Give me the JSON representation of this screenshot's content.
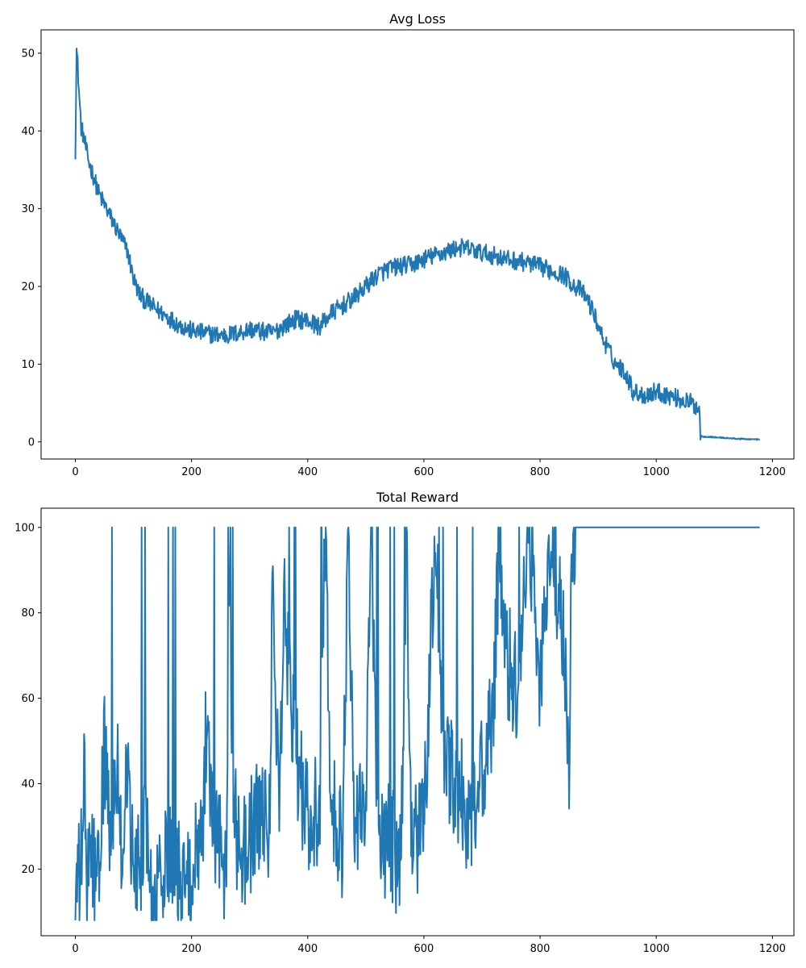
{
  "chart_data": [
    {
      "type": "line",
      "title": "Avg Loss",
      "xlabel": "",
      "ylabel": "",
      "xlim": [
        -59,
        1237
      ],
      "ylim": [
        -2.2,
        53.0
      ],
      "xticks": [
        0,
        200,
        400,
        600,
        800,
        1000,
        1200
      ],
      "yticks": [
        0,
        10,
        20,
        30,
        40,
        50
      ],
      "grid": false,
      "legend": "none",
      "color": "#1f77b4",
      "x_range": [
        0,
        1178
      ],
      "x": [
        0,
        2,
        4,
        7,
        10,
        15,
        20,
        25,
        30,
        40,
        50,
        60,
        70,
        80,
        90,
        100,
        110,
        120,
        140,
        160,
        180,
        200,
        220,
        240,
        260,
        280,
        300,
        320,
        340,
        360,
        380,
        400,
        420,
        440,
        460,
        480,
        500,
        520,
        540,
        560,
        580,
        600,
        620,
        640,
        660,
        680,
        700,
        720,
        740,
        760,
        780,
        800,
        820,
        840,
        860,
        870,
        880,
        890,
        900,
        910,
        920,
        930,
        940,
        950,
        960,
        980,
        1000,
        1020,
        1040,
        1060,
        1070,
        1074,
        1076,
        1080,
        1100,
        1120,
        1140,
        1160,
        1178
      ],
      "values": [
        37.5,
        50.5,
        48.5,
        44.0,
        40.5,
        39.0,
        37.0,
        35.5,
        34.5,
        32.0,
        30.5,
        29.0,
        27.5,
        26.0,
        24.5,
        21.0,
        19.0,
        18.2,
        17.0,
        16.0,
        15.0,
        14.3,
        14.0,
        13.8,
        13.7,
        14.0,
        14.5,
        14.2,
        14.0,
        15.0,
        15.8,
        15.6,
        14.8,
        16.5,
        17.5,
        18.5,
        20.0,
        21.5,
        22.3,
        22.6,
        22.8,
        23.5,
        24.0,
        24.5,
        25.0,
        24.8,
        24.3,
        24.0,
        23.5,
        23.3,
        23.0,
        22.5,
        22.0,
        21.5,
        20.0,
        19.5,
        18.5,
        17.0,
        15.0,
        13.0,
        11.5,
        10.0,
        9.5,
        8.5,
        6.5,
        6.0,
        6.5,
        6.0,
        5.5,
        5.0,
        4.5,
        4.5,
        0.8,
        0.7,
        0.6,
        0.5,
        0.4,
        0.35,
        0.3
      ],
      "noise": 1.2
    },
    {
      "type": "line",
      "title": "Total Reward",
      "xlabel": "",
      "ylabel": "",
      "xlim": [
        -59,
        1237
      ],
      "ylim": [
        4.4,
        104.5
      ],
      "xticks": [
        0,
        200,
        400,
        600,
        800,
        1000,
        1200
      ],
      "yticks": [
        20,
        40,
        60,
        80,
        100
      ],
      "grid": false,
      "legend": "none",
      "color": "#1f77b4",
      "x_range": [
        0,
        1178
      ],
      "x": [
        0,
        5,
        10,
        15,
        20,
        30,
        40,
        50,
        60,
        70,
        80,
        90,
        100,
        120,
        140,
        150,
        160,
        180,
        200,
        220,
        225,
        240,
        260,
        265,
        270,
        280,
        300,
        320,
        335,
        340,
        350,
        360,
        380,
        400,
        420,
        430,
        440,
        460,
        470,
        480,
        500,
        510,
        520,
        540,
        560,
        570,
        575,
        580,
        600,
        620,
        630,
        640,
        660,
        680,
        700,
        720,
        730,
        740,
        760,
        780,
        800,
        820,
        840,
        850,
        855,
        860,
        900,
        955,
        960,
        975,
        1000,
        1100,
        1178
      ],
      "values": [
        13,
        16,
        21,
        41,
        18,
        22,
        15,
        51,
        20,
        49,
        24,
        45,
        17,
        28,
        11,
        20,
        26,
        17,
        19,
        35,
        54,
        28,
        20,
        87,
        49,
        24,
        27,
        33,
        29,
        95,
        34,
        79,
        47,
        31,
        33,
        100,
        35,
        26,
        100,
        31,
        38,
        100,
        24,
        27,
        21,
        100,
        48,
        24,
        30,
        100,
        58,
        43,
        38,
        32,
        42,
        56,
        100,
        71,
        62,
        100,
        64,
        100,
        72,
        44,
        100,
        100,
        100,
        100,
        100,
        100,
        100,
        100,
        100
      ],
      "noise": 14
    }
  ]
}
